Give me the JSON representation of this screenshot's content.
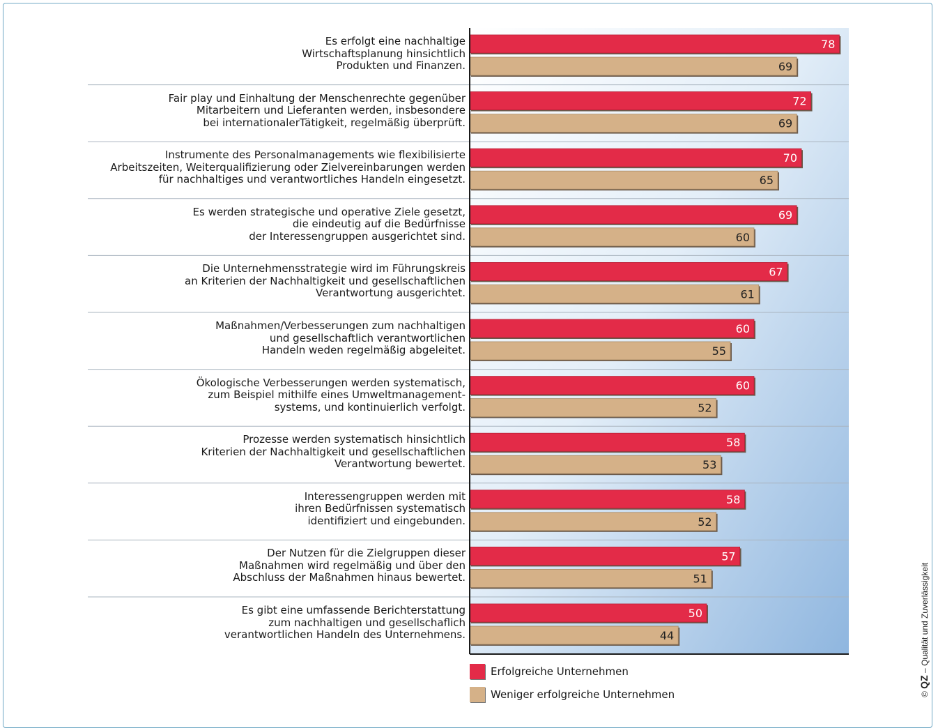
{
  "chart_data": {
    "type": "bar",
    "orientation": "horizontal",
    "categories": [
      "Es erfolgt eine nachhaltige\nWirtschaftsplanung hinsichtlich\nProdukten und Finanzen.",
      "Fair play und Einhaltung der Menschenrechte gegenüber\nMitarbeitern und Lieferanten werden, insbesondere\nbei internationalerTätigkeit, regelmäßig überprüft.",
      "Instrumente des Personalmanagements wie flexibilisierte\nArbeitszeiten, Weiterqualifizierung oder Zielvereinbarungen werden\nfür nachhaltiges und verantwortliches Handeln eingesetzt.",
      "Es werden strategische und operative Ziele gesetzt,\ndie eindeutig auf die Bedürfnisse\nder Interessengruppen ausgerichtet sind.",
      "Die Unternehmensstrategie wird im Führungskreis\nan Kriterien der Nachhaltigkeit und gesellschaftlichen\nVerantwortung ausgerichtet.",
      "Maßnahmen/Verbesserungen zum nachhaltigen\nund gesellschaftlich verantwortlichen\nHandeln weden regelmäßig abgeleitet.",
      "Ökologische Verbesserungen werden systematisch,\nzum Beispiel mithilfe eines Umweltmanagement-\nsystems, und kontinuierlich verfolgt.",
      "Prozesse werden systematisch hinsichtlich\nKriterien der Nachhaltigkeit und gesellschaftlichen\nVerantwortung bewertet.",
      "Interessengruppen werden mit\nihren Bedürfnissen systematisch\nidentifiziert und eingebunden.",
      "Der Nutzen für die Zielgruppen dieser\nMaßnahmen wird regelmäßig und über den\nAbschluss der Maßnahmen hinaus bewertet.",
      "Es gibt eine umfassende Berichterstattung\nzum nachhaltigen und gesellschaflich\nverantwortlichen Handeln des Unternehmens."
    ],
    "series": [
      {
        "name": "Erfolgreiche Unternehmen",
        "color": "#e32b48",
        "values": [
          78,
          72,
          70,
          69,
          67,
          60,
          60,
          58,
          58,
          57,
          50
        ]
      },
      {
        "name": "Weniger erfolgreiche Unternehmen",
        "color": "#d5b188",
        "values": [
          69,
          69,
          65,
          60,
          61,
          55,
          52,
          53,
          52,
          51,
          44
        ]
      }
    ],
    "xlim": [
      0,
      80
    ],
    "legend_position": "bottom",
    "grid": false
  },
  "copyright": {
    "symbol": "©",
    "brand": "QZ",
    "text": "– Qualität und Zuverlässigkeit"
  },
  "colors": {
    "frame": "#6fa8c4",
    "value_text": "#ffffff",
    "value_text_light": "#222222"
  }
}
